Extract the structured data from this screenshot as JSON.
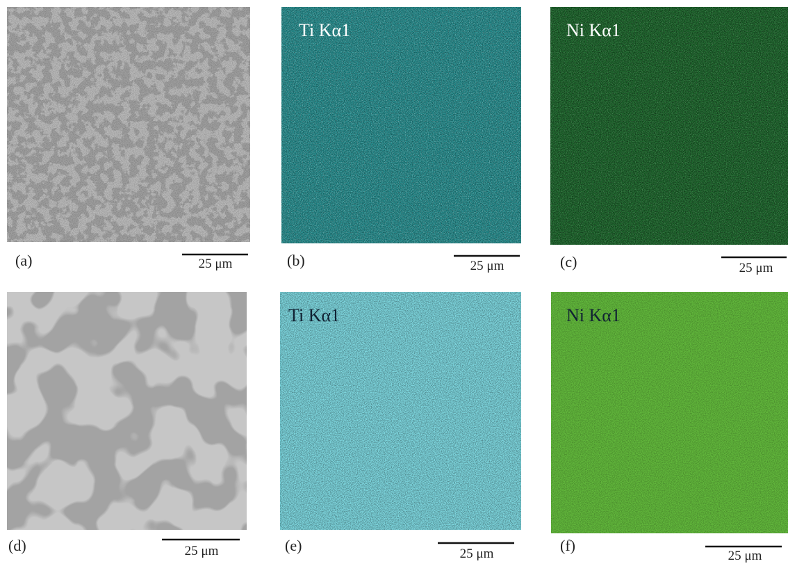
{
  "panels": [
    {
      "label": "(a)",
      "scale_bar": "25 μm"
    },
    {
      "label": "(b)",
      "title": "Ti Kα1",
      "scale_bar": "25 μm"
    },
    {
      "label": "(c)",
      "title": "Ni Kα1",
      "scale_bar": "25 μm"
    },
    {
      "label": "(d)",
      "scale_bar": "25 μm"
    },
    {
      "label": "(e)",
      "title": "Ti Kα1",
      "scale_bar": "25 μm"
    },
    {
      "label": "(f)",
      "title": "Ni Kα1",
      "scale_bar": "25 μm"
    }
  ]
}
